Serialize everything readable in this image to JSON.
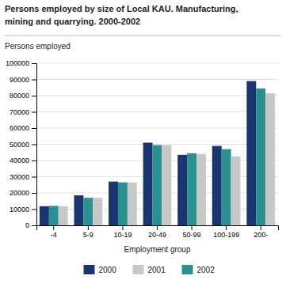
{
  "chart_data": {
    "type": "bar",
    "title": "Persons employed by size of Local KAU. Manufacturing,\nmining and quarrying. 2000-2002",
    "ylabel": "Persons employed",
    "xlabel": "Employment group",
    "categories": [
      "-4",
      "5-9",
      "10-19",
      "20-49",
      "50-99",
      "100-199",
      "200-"
    ],
    "series": [
      {
        "name": "2000",
        "color": "#1a3570",
        "values": [
          11800,
          18500,
          27000,
          51000,
          43500,
          49000,
          89000
        ]
      },
      {
        "name": "2002",
        "color": "#2a9090",
        "values": [
          12000,
          17000,
          26500,
          49500,
          44500,
          47000,
          84500
        ]
      },
      {
        "name": "2001",
        "color": "#c8c8c8",
        "values": [
          11800,
          17000,
          26500,
          49500,
          44000,
          42500,
          81500
        ]
      }
    ],
    "ylim": [
      0,
      100000
    ],
    "yticks": [
      0,
      10000,
      20000,
      30000,
      40000,
      50000,
      60000,
      70000,
      80000,
      90000,
      100000
    ],
    "grid": true,
    "legend": "bottom"
  }
}
